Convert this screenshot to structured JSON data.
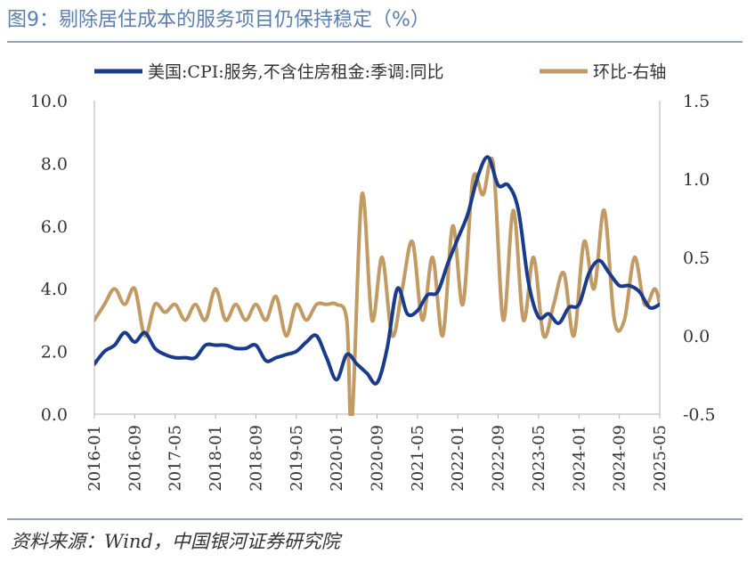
{
  "header": {
    "title": "图9：剔除居住成本的服务项目仍保持稳定（%）"
  },
  "footer": {
    "source": "资料来源：Wind，中国银河证券研究院"
  },
  "colors": {
    "left_series": "#1a3a8c",
    "right_series": "#c19a64",
    "rule": "#8ea3c0",
    "axis": "#b0b0b0"
  },
  "chart_data": {
    "type": "line",
    "title": "",
    "x_ticks": [
      "2016-01",
      "2016-09",
      "2017-05",
      "2018-01",
      "2018-09",
      "2019-05",
      "2020-01",
      "2020-09",
      "2021-05",
      "2022-01",
      "2022-09",
      "2023-05",
      "2024-01",
      "2024-09",
      "2025-05"
    ],
    "x_range": [
      "2016-01",
      "2025-05"
    ],
    "y_left": {
      "range": [
        0,
        10
      ],
      "ticks": [
        "0.0",
        "2.0",
        "4.0",
        "6.0",
        "8.0",
        "10.0"
      ]
    },
    "y_right": {
      "range": [
        -0.5,
        1.5
      ],
      "ticks": [
        "-0.5",
        "0.0",
        "0.5",
        "1.0",
        "1.5"
      ]
    },
    "legend": {
      "position": "top"
    },
    "series": [
      {
        "name": "美国:CPI:服务,不含住房租金:季调:同比",
        "axis": "left",
        "x": [
          "2016-01",
          "2016-03",
          "2016-05",
          "2016-07",
          "2016-09",
          "2016-11",
          "2017-01",
          "2017-03",
          "2017-05",
          "2017-07",
          "2017-09",
          "2017-11",
          "2018-01",
          "2018-03",
          "2018-05",
          "2018-07",
          "2018-09",
          "2018-11",
          "2019-01",
          "2019-03",
          "2019-05",
          "2019-07",
          "2019-09",
          "2019-11",
          "2020-01",
          "2020-03",
          "2020-05",
          "2020-07",
          "2020-09",
          "2020-11",
          "2021-01",
          "2021-03",
          "2021-05",
          "2021-07",
          "2021-09",
          "2021-11",
          "2022-01",
          "2022-03",
          "2022-05",
          "2022-07",
          "2022-09",
          "2022-11",
          "2023-01",
          "2023-03",
          "2023-05",
          "2023-07",
          "2023-09",
          "2023-11",
          "2024-01",
          "2024-03",
          "2024-05",
          "2024-07",
          "2024-09",
          "2024-11",
          "2025-01",
          "2025-03",
          "2025-05"
        ],
        "values": [
          1.6,
          2.0,
          2.2,
          2.6,
          2.3,
          2.6,
          2.1,
          1.9,
          1.8,
          1.8,
          1.8,
          2.2,
          2.2,
          2.2,
          2.1,
          2.1,
          2.2,
          1.7,
          1.8,
          1.9,
          2.0,
          2.3,
          2.5,
          1.8,
          1.1,
          1.9,
          1.6,
          1.3,
          1.0,
          2.1,
          4.0,
          3.2,
          3.3,
          3.8,
          3.9,
          4.8,
          5.6,
          6.4,
          7.6,
          8.2,
          7.3,
          7.3,
          6.5,
          4.2,
          3.1,
          3.2,
          2.9,
          3.4,
          3.5,
          4.5,
          4.9,
          4.5,
          4.1,
          4.1,
          3.9,
          3.4,
          3.5
        ]
      },
      {
        "name": "环比-右轴",
        "axis": "right",
        "x": [
          "2016-01",
          "2016-03",
          "2016-05",
          "2016-07",
          "2016-09",
          "2016-11",
          "2017-01",
          "2017-03",
          "2017-05",
          "2017-07",
          "2017-09",
          "2017-11",
          "2018-01",
          "2018-03",
          "2018-05",
          "2018-07",
          "2018-09",
          "2018-11",
          "2019-01",
          "2019-03",
          "2019-05",
          "2019-07",
          "2019-09",
          "2019-11",
          "2020-01",
          "2020-03",
          "2020-04",
          "2020-06",
          "2020-08",
          "2020-10",
          "2020-12",
          "2021-02",
          "2021-04",
          "2021-06",
          "2021-08",
          "2021-10",
          "2021-12",
          "2022-02",
          "2022-04",
          "2022-06",
          "2022-08",
          "2022-10",
          "2022-12",
          "2023-02",
          "2023-04",
          "2023-06",
          "2023-08",
          "2023-10",
          "2023-12",
          "2024-02",
          "2024-04",
          "2024-06",
          "2024-08",
          "2024-10",
          "2024-12",
          "2025-02",
          "2025-04",
          "2025-05"
        ],
        "values": [
          0.1,
          0.2,
          0.3,
          0.2,
          0.3,
          0.0,
          0.2,
          0.15,
          0.2,
          0.1,
          0.2,
          0.1,
          0.3,
          0.1,
          0.2,
          0.1,
          0.2,
          0.1,
          0.25,
          0.0,
          0.2,
          0.1,
          0.2,
          0.2,
          0.2,
          0.1,
          -0.55,
          0.9,
          0.1,
          0.5,
          0.0,
          0.3,
          0.6,
          0.1,
          0.5,
          0.0,
          0.7,
          0.2,
          1.0,
          0.9,
          1.1,
          0.1,
          0.8,
          0.1,
          0.5,
          0.0,
          0.2,
          0.4,
          0.0,
          0.6,
          0.3,
          0.8,
          0.1,
          0.1,
          0.5,
          0.2,
          0.3,
          0.2
        ]
      }
    ]
  }
}
